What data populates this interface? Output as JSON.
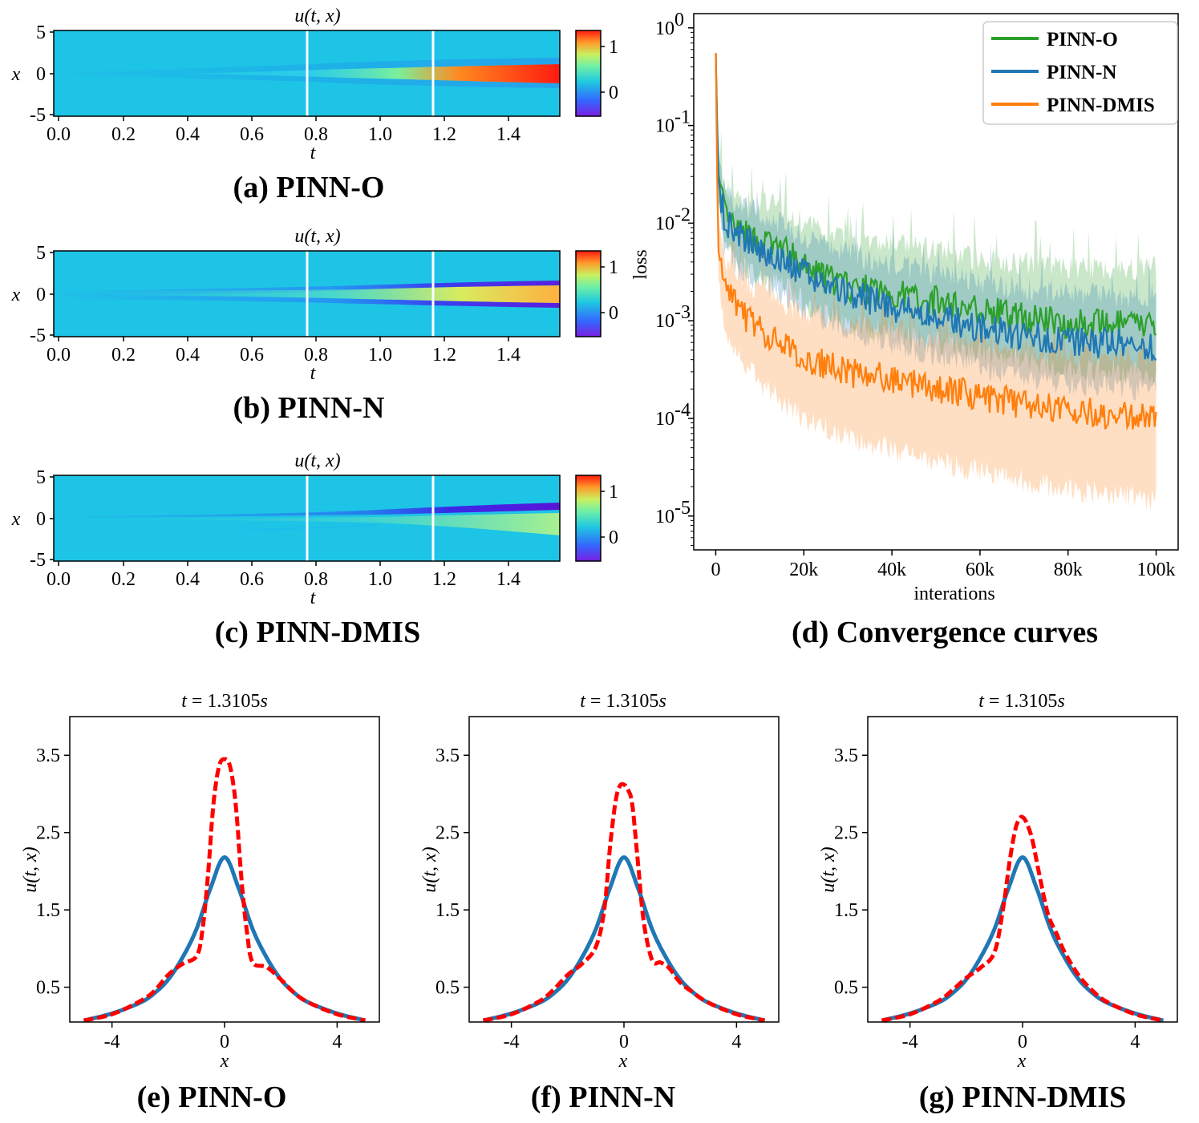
{
  "chart_data": [
    {
      "id": "a",
      "type": "heatmap",
      "title": "u(t, x)",
      "caption": "(a) PINN-O",
      "xlabel": "t",
      "ylabel": "x",
      "xlim": [
        0,
        1.5708
      ],
      "ylim": [
        -5,
        5
      ],
      "xticks": [
        "0.0",
        "0.2",
        "0.4",
        "0.6",
        "0.8",
        "1.0",
        "1.2",
        "1.4"
      ],
      "yticks": [
        "-5",
        "0",
        "5"
      ],
      "colorbar_ticks": [
        "1",
        "0"
      ],
      "cut_lines_t": [
        0.785,
        1.178
      ],
      "peak_value": 1.25,
      "side_value": 0.0
    },
    {
      "id": "b",
      "type": "heatmap",
      "title": "u(t, x)",
      "caption": "(b) PINN-N",
      "xlabel": "t",
      "ylabel": "x",
      "xlim": [
        0,
        1.5708
      ],
      "ylim": [
        -5,
        5
      ],
      "xticks": [
        "0.0",
        "0.2",
        "0.4",
        "0.6",
        "0.8",
        "1.0",
        "1.2",
        "1.4"
      ],
      "yticks": [
        "-5",
        "0",
        "5"
      ],
      "colorbar_ticks": [
        "1",
        "0"
      ],
      "cut_lines_t": [
        0.785,
        1.178
      ],
      "peak_value": 0.75,
      "side_value": -0.6
    },
    {
      "id": "c",
      "type": "heatmap",
      "title": "u(t, x)",
      "caption": "(c) PINN-DMIS",
      "xlabel": "t",
      "ylabel": "x",
      "xlim": [
        0,
        1.5708
      ],
      "ylim": [
        -5,
        5
      ],
      "xticks": [
        "0.0",
        "0.2",
        "0.4",
        "0.6",
        "0.8",
        "1.0",
        "1.2",
        "1.4"
      ],
      "yticks": [
        "-5",
        "0",
        "5"
      ],
      "colorbar_ticks": [
        "1",
        "0"
      ],
      "cut_lines_t": [
        0.785,
        1.178
      ],
      "peak_value": 0.35,
      "side_value": -0.85
    },
    {
      "id": "d",
      "type": "line",
      "caption": "(d) Convergence curves",
      "xlabel": "interations",
      "ylabel": "loss",
      "yscale": "log",
      "xlim": [
        -5000,
        105000
      ],
      "ylim": [
        4.5e-06,
        1.4
      ],
      "xticks": [
        0,
        20000,
        40000,
        60000,
        80000,
        100000
      ],
      "xtick_labels": [
        "0",
        "20k",
        "40k",
        "60k",
        "80k",
        "100k"
      ],
      "yticks": [
        1,
        0.1,
        0.01,
        0.001,
        0.0001,
        1e-05
      ],
      "ytick_labels": [
        "10",
        "10",
        "10",
        "10",
        "10",
        "10"
      ],
      "ytick_exponents": [
        "0",
        "-1",
        "-2",
        "-3",
        "-4",
        "-5"
      ],
      "legend_position": "top-right",
      "series": [
        {
          "name": "PINN-O",
          "color": "#2ca02c",
          "x": [
            0,
            500,
            2000,
            5000,
            10000,
            15000,
            20000,
            30000,
            40000,
            50000,
            60000,
            70000,
            80000,
            90000,
            100000
          ],
          "y": [
            0.55,
            0.035,
            0.012,
            0.008,
            0.0065,
            0.0055,
            0.0035,
            0.0022,
            0.0019,
            0.0016,
            0.0013,
            0.0011,
            0.00095,
            0.0009,
            0.0009
          ],
          "band_upper_factor": [
            1.0,
            1.4,
            1.8,
            2.0,
            2.2,
            2.4,
            2.5,
            2.7,
            2.8,
            3.0,
            3.0,
            3.2,
            3.3,
            3.4,
            3.5
          ],
          "band_lower_factor": [
            1.0,
            1.3,
            1.5,
            1.6,
            1.6,
            1.7,
            1.7,
            1.8,
            1.9,
            2.0,
            2.0,
            2.1,
            2.2,
            2.2,
            2.3
          ]
        },
        {
          "name": "PINN-N",
          "color": "#1f77b4",
          "x": [
            0,
            500,
            2000,
            5000,
            10000,
            15000,
            20000,
            30000,
            40000,
            50000,
            60000,
            70000,
            80000,
            90000,
            100000
          ],
          "y": [
            0.55,
            0.03,
            0.011,
            0.0075,
            0.0055,
            0.0042,
            0.003,
            0.0019,
            0.0014,
            0.0011,
            0.00085,
            0.0007,
            0.00062,
            0.00058,
            0.00055
          ],
          "band_upper_factor": [
            1.0,
            1.4,
            1.7,
            1.9,
            2.0,
            2.1,
            2.2,
            2.3,
            2.4,
            2.5,
            2.6,
            2.7,
            2.8,
            2.8,
            2.9
          ],
          "band_lower_factor": [
            1.0,
            1.3,
            1.5,
            1.6,
            1.6,
            1.7,
            1.7,
            1.8,
            1.8,
            1.9,
            1.9,
            2.0,
            2.0,
            2.1,
            2.1
          ]
        },
        {
          "name": "PINN-DMIS",
          "color": "#ff7f0e",
          "x": [
            0,
            500,
            2000,
            5000,
            10000,
            15000,
            20000,
            30000,
            40000,
            50000,
            60000,
            70000,
            80000,
            90000,
            100000
          ],
          "y": [
            0.55,
            0.0055,
            0.0022,
            0.0013,
            0.0008,
            0.00055,
            0.00042,
            0.0003,
            0.00025,
            0.0002,
            0.00017,
            0.00014,
            0.00012,
            0.00011,
            0.0001
          ],
          "band_upper_factor": [
            1.0,
            1.5,
            1.8,
            2.0,
            2.2,
            2.4,
            2.6,
            2.8,
            3.0,
            3.0,
            3.2,
            3.2,
            3.3,
            3.4,
            3.5
          ],
          "band_lower_factor": [
            1.0,
            1.6,
            2.0,
            2.3,
            2.6,
            2.9,
            3.2,
            3.6,
            4.0,
            4.2,
            4.4,
            4.6,
            4.8,
            5.0,
            5.0
          ]
        }
      ]
    },
    {
      "id": "e",
      "type": "line",
      "title": "t = 1.3105s",
      "title_parts": [
        "t",
        " = 1.3105",
        "s"
      ],
      "caption": "(e) PINN-O",
      "xlabel": "x",
      "ylabel": "u(t, x)",
      "xlim": [
        -5.5,
        5.5
      ],
      "ylim": [
        0.05,
        4.0
      ],
      "xticks": [
        -4,
        0,
        4
      ],
      "xtick_labels": [
        "-4",
        "0",
        "4"
      ],
      "yticks": [
        0.5,
        1.5,
        2.5,
        3.5
      ],
      "ytick_labels": [
        "0.5",
        "1.5",
        "2.5",
        "3.5"
      ],
      "series": [
        {
          "style": "solid",
          "color": "#1f77b4",
          "x": [
            -5,
            -4,
            -3,
            -2.5,
            -2,
            -1.5,
            -1,
            -0.5,
            0,
            0.5,
            1,
            1.5,
            2,
            2.5,
            3,
            4,
            5
          ],
          "y": [
            0.07,
            0.16,
            0.3,
            0.42,
            0.6,
            0.88,
            1.25,
            1.78,
            2.18,
            1.78,
            1.25,
            0.88,
            0.6,
            0.42,
            0.3,
            0.16,
            0.07
          ]
        },
        {
          "style": "dashed",
          "color": "#ff0000",
          "x": [
            -5,
            -4,
            -3,
            -2.5,
            -2,
            -1.5,
            -1,
            -0.8,
            -0.6,
            -0.4,
            -0.2,
            0,
            0.2,
            0.4,
            0.6,
            0.8,
            1,
            1.5,
            2,
            2.5,
            3,
            4,
            5
          ],
          "y": [
            0.07,
            0.15,
            0.32,
            0.45,
            0.66,
            0.8,
            0.9,
            1.2,
            1.9,
            2.85,
            3.35,
            3.45,
            3.35,
            2.85,
            1.9,
            1.2,
            0.82,
            0.76,
            0.6,
            0.42,
            0.3,
            0.15,
            0.07
          ]
        }
      ]
    },
    {
      "id": "f",
      "type": "line",
      "title": "t = 1.3105s",
      "title_parts": [
        "t",
        " = 1.3105",
        "s"
      ],
      "caption": "(f) PINN-N",
      "xlabel": "x",
      "ylabel": "u(t, x)",
      "xlim": [
        -5.5,
        5.5
      ],
      "ylim": [
        0.05,
        4.0
      ],
      "xticks": [
        -4,
        0,
        4
      ],
      "xtick_labels": [
        "-4",
        "0",
        "4"
      ],
      "yticks": [
        0.5,
        1.5,
        2.5,
        3.5
      ],
      "ytick_labels": [
        "0.5",
        "1.5",
        "2.5",
        "3.5"
      ],
      "series": [
        {
          "style": "solid",
          "color": "#1f77b4",
          "x": [
            -5,
            -4,
            -3,
            -2.5,
            -2,
            -1.5,
            -1,
            -0.5,
            0,
            0.5,
            1,
            1.5,
            2,
            2.5,
            3,
            4,
            5
          ],
          "y": [
            0.07,
            0.16,
            0.3,
            0.42,
            0.6,
            0.88,
            1.25,
            1.78,
            2.18,
            1.78,
            1.25,
            0.88,
            0.6,
            0.42,
            0.3,
            0.16,
            0.07
          ]
        },
        {
          "style": "dashed",
          "color": "#ff0000",
          "x": [
            -5,
            -4,
            -3,
            -2.5,
            -2,
            -1.5,
            -1,
            -0.7,
            -0.5,
            -0.3,
            -0.15,
            0,
            0.15,
            0.3,
            0.5,
            0.7,
            1,
            1.3,
            1.6,
            2,
            2.5,
            3,
            4,
            5
          ],
          "y": [
            0.07,
            0.15,
            0.32,
            0.47,
            0.66,
            0.8,
            1.02,
            1.5,
            2.3,
            2.9,
            3.1,
            3.12,
            3.05,
            2.85,
            2.1,
            1.35,
            0.85,
            0.82,
            0.75,
            0.56,
            0.42,
            0.3,
            0.15,
            0.07
          ]
        }
      ]
    },
    {
      "id": "g",
      "type": "line",
      "title": "t = 1.3105s",
      "title_parts": [
        "t",
        " = 1.3105",
        "s"
      ],
      "caption": "(g) PINN-DMIS",
      "xlabel": "x",
      "ylabel": "u(t, x)",
      "xlim": [
        -5.5,
        5.5
      ],
      "ylim": [
        0.05,
        4.0
      ],
      "xticks": [
        -4,
        0,
        4
      ],
      "xtick_labels": [
        "-4",
        "0",
        "4"
      ],
      "yticks": [
        0.5,
        1.5,
        2.5,
        3.5
      ],
      "ytick_labels": [
        "0.5",
        "1.5",
        "2.5",
        "3.5"
      ],
      "series": [
        {
          "style": "solid",
          "color": "#1f77b4",
          "x": [
            -5,
            -4,
            -3,
            -2.5,
            -2,
            -1.5,
            -1,
            -0.5,
            0,
            0.5,
            1,
            1.5,
            2,
            2.5,
            3,
            4,
            5
          ],
          "y": [
            0.07,
            0.16,
            0.3,
            0.42,
            0.6,
            0.88,
            1.25,
            1.78,
            2.18,
            1.78,
            1.25,
            0.88,
            0.6,
            0.42,
            0.3,
            0.16,
            0.07
          ]
        },
        {
          "style": "dashed",
          "color": "#ff0000",
          "x": [
            -5,
            -4,
            -3,
            -2.5,
            -2,
            -1.5,
            -1,
            -0.7,
            -0.45,
            -0.25,
            -0.1,
            0,
            0.15,
            0.35,
            0.6,
            0.9,
            1.2,
            1.5,
            2,
            2.5,
            3,
            4,
            5
          ],
          "y": [
            0.07,
            0.15,
            0.32,
            0.46,
            0.62,
            0.75,
            0.95,
            1.5,
            2.15,
            2.55,
            2.68,
            2.7,
            2.62,
            2.4,
            1.95,
            1.45,
            1.2,
            0.95,
            0.65,
            0.45,
            0.31,
            0.15,
            0.07
          ]
        }
      ]
    }
  ]
}
